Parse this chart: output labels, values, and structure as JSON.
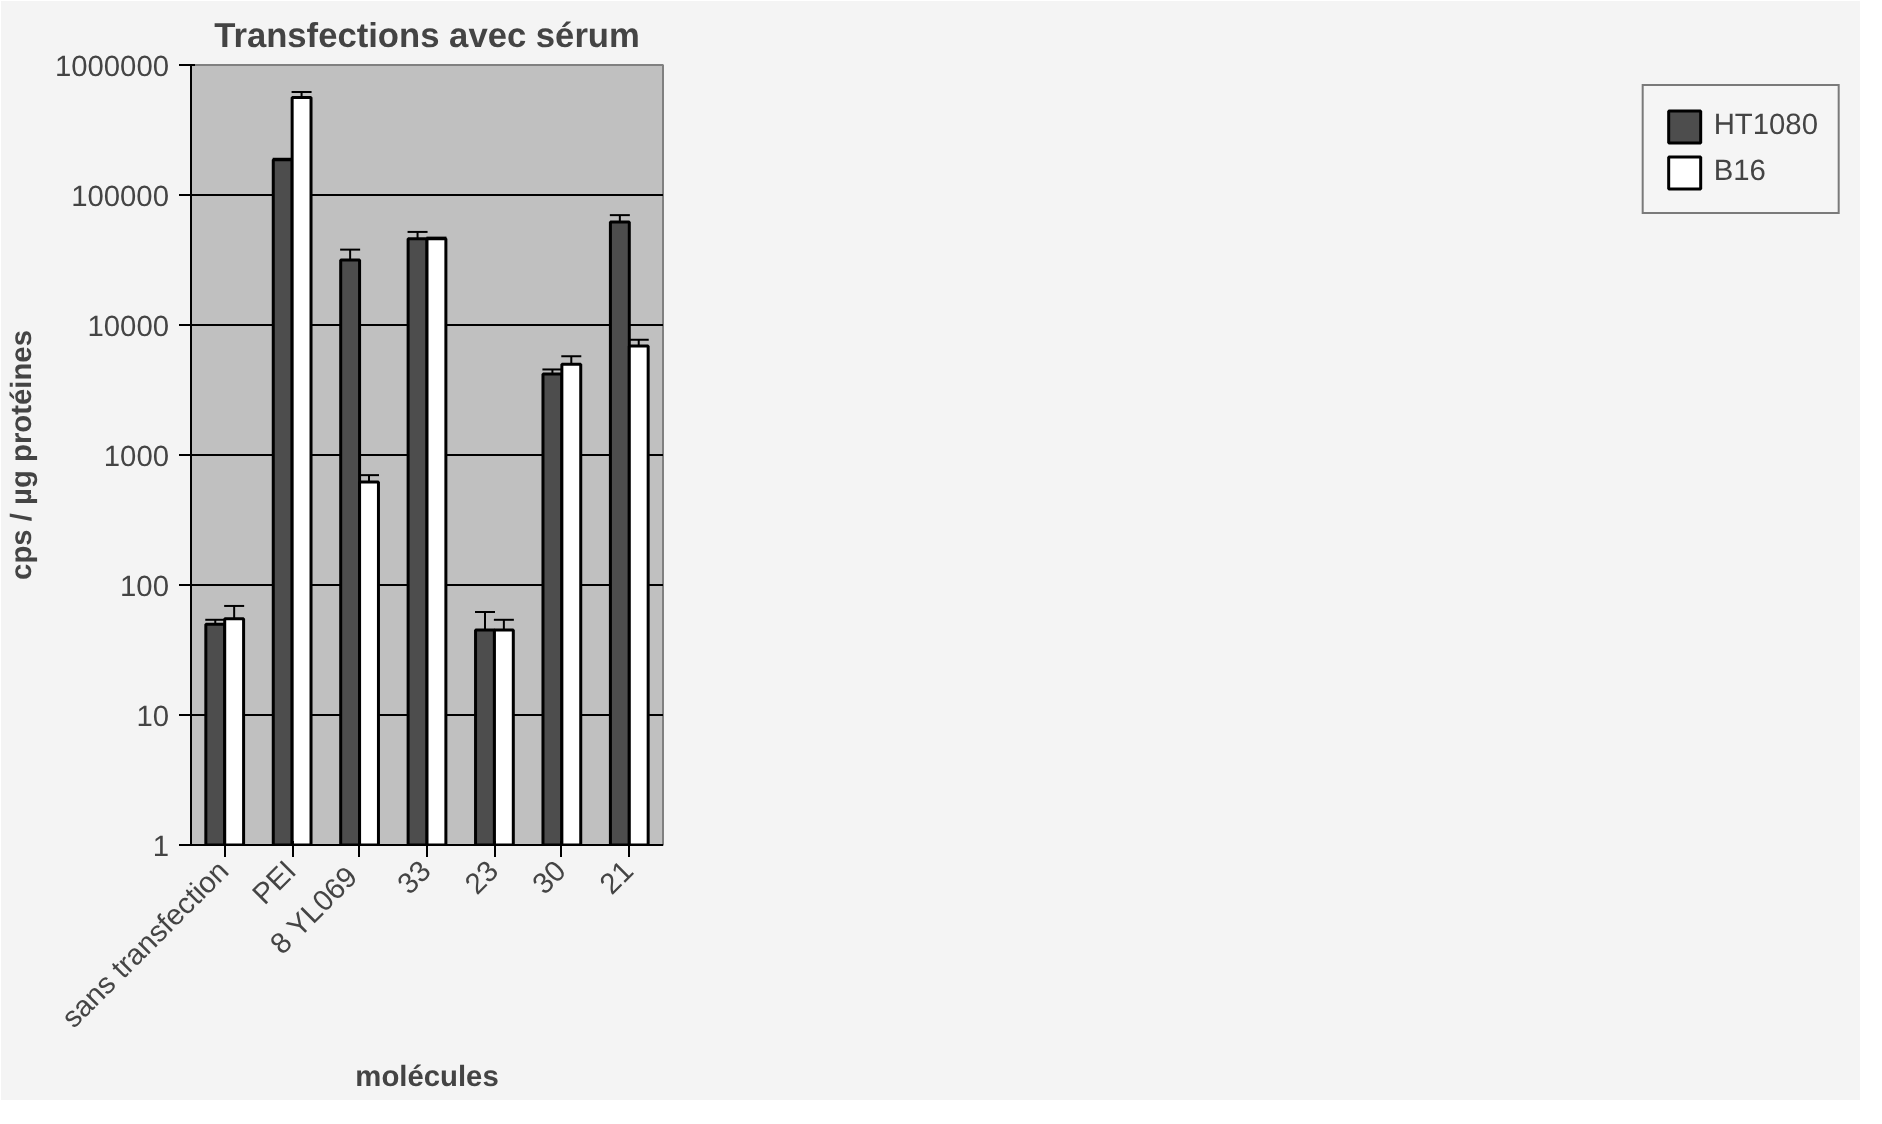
{
  "chart_data": {
    "type": "bar",
    "title": "Transfections avec sérum",
    "xlabel": "molécules",
    "ylabel": "cps / µg protéines",
    "categories": [
      "sans transfection",
      "PEI",
      "8  YL069",
      "33",
      "23",
      "30",
      "21"
    ],
    "series": [
      {
        "name": "HT1080",
        "color": "#4d4d4d",
        "values": [
          50,
          187000,
          31600,
          46000,
          45,
          4200,
          62000
        ],
        "errors": [
          [
            50,
            54
          ],
          [
            187000,
            190000
          ],
          [
            31600,
            38000
          ],
          [
            46000,
            52000
          ],
          [
            45,
            62
          ],
          [
            4200,
            4550
          ],
          [
            62000,
            70000
          ]
        ]
      },
      {
        "name": "B16",
        "color": "#ffffff",
        "values": [
          55,
          563000,
          620,
          46000,
          45,
          5000,
          6900
        ],
        "errors": [
          [
            55,
            69
          ],
          [
            563000,
            620000
          ],
          [
            620,
            700
          ],
          [
            46000,
            47000
          ],
          [
            45,
            54
          ],
          [
            5000,
            5750
          ],
          [
            6900,
            7700
          ]
        ]
      }
    ],
    "log": "y",
    "ylim": [
      1,
      1000000
    ],
    "yticks": [
      1,
      10,
      100,
      1000,
      10000,
      100000,
      1000000
    ],
    "grid": "y",
    "legend": "right"
  }
}
